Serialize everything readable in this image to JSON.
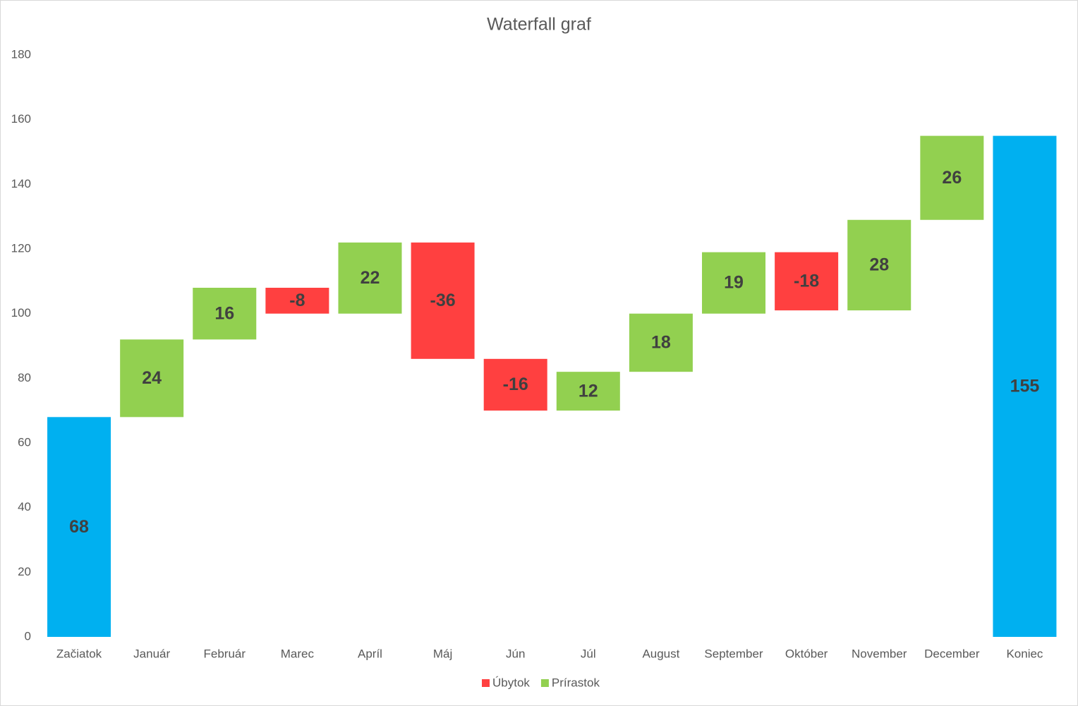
{
  "chart_data": {
    "type": "waterfall",
    "title": "Waterfall graf",
    "categories": [
      "Začiatok",
      "Január",
      "Február",
      "Marec",
      "Apríl",
      "Máj",
      "Jún",
      "Júl",
      "August",
      "September",
      "Október",
      "November",
      "December",
      "Koniec"
    ],
    "values": [
      68,
      24,
      16,
      -8,
      22,
      -36,
      -16,
      12,
      18,
      19,
      -18,
      28,
      26,
      155
    ],
    "is_total": [
      true,
      false,
      false,
      false,
      false,
      false,
      false,
      false,
      false,
      false,
      false,
      false,
      false,
      true
    ],
    "total_color": "#00b0f0",
    "increase_color": "#92d050",
    "decrease_color": "#ff4040",
    "legend": [
      {
        "name": "Úbytok",
        "color": "#ff4040"
      },
      {
        "name": "Prírastok",
        "color": "#92d050"
      }
    ],
    "ylim": [
      0,
      180
    ],
    "yticks": [
      0,
      20,
      40,
      60,
      80,
      100,
      120,
      140,
      160,
      180
    ],
    "grid": false
  }
}
